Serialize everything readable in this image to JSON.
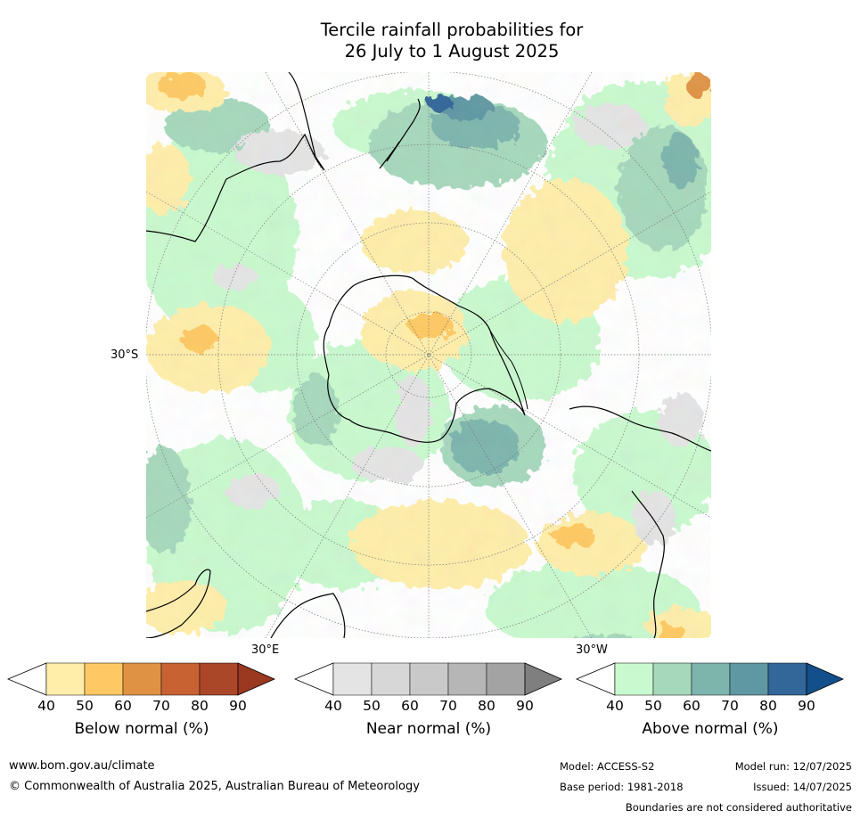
{
  "title": {
    "line1": "Tercile rainfall probabilities for",
    "line2": "26 July to 1 August 2025"
  },
  "map": {
    "lat_label": "30°S",
    "lon_label_east": "30°E",
    "lon_label_west": "30°W",
    "projection": "south polar stereographic"
  },
  "colorbars": [
    {
      "label": "Below normal (%)",
      "ticks": [
        "40",
        "50",
        "60",
        "70",
        "80",
        "90"
      ],
      "colors": [
        "#ffeeaa",
        "#fec964",
        "#df9244",
        "#c96232",
        "#ab4729",
        "#9a3820"
      ]
    },
    {
      "label": "Near normal (%)",
      "ticks": [
        "40",
        "50",
        "60",
        "70",
        "80",
        "90"
      ],
      "colors": [
        "#e4e4e4",
        "#d7d7d7",
        "#c9c9c9",
        "#b6b6b6",
        "#a3a3a3",
        "#7f7f7f"
      ]
    },
    {
      "label": "Above normal (%)",
      "ticks": [
        "40",
        "50",
        "60",
        "70",
        "80",
        "90"
      ],
      "colors": [
        "#c9f9ce",
        "#a6d8bc",
        "#7db5ad",
        "#5f97a3",
        "#336699",
        "#134f8a"
      ]
    }
  ],
  "footer": {
    "url": "www.bom.gov.au/climate",
    "copyright": "© Commonwealth of Australia 2025, Australian Bureau of Meteorology",
    "model": "Model: ACCESS-S2",
    "base_period": "Base period: 1981-2018",
    "model_run": "Model run: 12/07/2025",
    "issued": "Issued: 14/07/2025",
    "disclaimer": "Boundaries are not considered authoritative"
  }
}
